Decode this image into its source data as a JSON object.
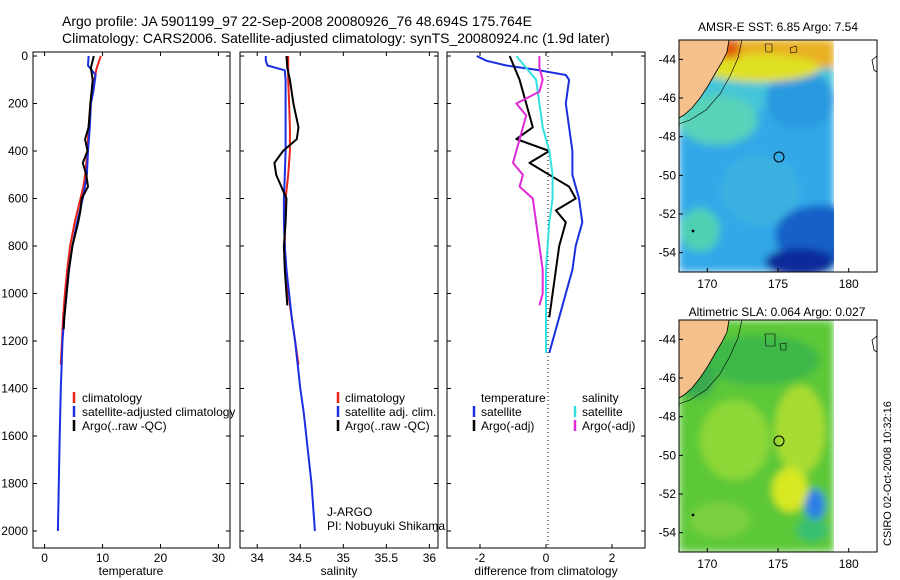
{
  "header": {
    "title_line1": "Argo profile: JA 5901199_97 22-Sep-2008 20080926_76 48.694S 175.764E",
    "title_line2": "Climatology: CARS2006. Satellite-adjusted climatology: synTS_20080924.nc (1.9d later)"
  },
  "colors": {
    "climatology": "#e8231b",
    "satellite": "#1a2ee0",
    "argo": "#000000",
    "cyan": "#33e0e0",
    "magenta": "#e028d8",
    "land": "#f6c08c"
  },
  "chart_data": [
    {
      "type": "line",
      "title": "",
      "xlabel": "temperature",
      "ylabel": "",
      "xlim": [
        -2,
        32
      ],
      "ylim": [
        2050,
        0
      ],
      "xticks": [
        "0",
        "10",
        "20",
        "30"
      ],
      "yticks": [
        "0",
        "200",
        "400",
        "600",
        "800",
        "1000",
        "1200",
        "1400",
        "1600",
        "1800",
        "2000"
      ],
      "legend": [
        "climatology",
        "satellite-adjusted climatology",
        "Argo(..raw -QC)"
      ],
      "series": [
        {
          "name": "climatology",
          "color": "climatology",
          "depth": [
            0,
            50,
            100,
            200,
            300,
            400,
            500,
            550,
            600,
            700,
            800,
            900,
            1000,
            1100,
            1200,
            1300
          ],
          "values": [
            9.7,
            9.0,
            8.6,
            7.9,
            7.6,
            7.4,
            7.0,
            6.7,
            6.2,
            5.2,
            4.4,
            3.9,
            3.5,
            3.2,
            3.0,
            2.8
          ]
        },
        {
          "name": "satellite-adjusted climatology",
          "color": "satellite",
          "depth": [
            0,
            40,
            80,
            150,
            200,
            300,
            400,
            500,
            600,
            700,
            800,
            900,
            1000,
            1100,
            1200,
            1400,
            1600,
            1800,
            2000
          ],
          "values": [
            7.6,
            7.5,
            8.8,
            8.4,
            8.0,
            7.8,
            7.5,
            7.3,
            6.6,
            5.6,
            4.8,
            4.2,
            3.8,
            3.4,
            3.1,
            2.8,
            2.6,
            2.45,
            2.3
          ]
        },
        {
          "name": "Argo(..raw -QC)",
          "color": "argo",
          "depth": [
            0,
            50,
            100,
            200,
            300,
            350,
            400,
            450,
            500,
            550,
            600,
            650,
            700,
            800,
            900,
            1000,
            1100,
            1150
          ],
          "values": [
            8.5,
            8.0,
            8.3,
            7.9,
            7.6,
            7.0,
            7.4,
            6.6,
            7.2,
            7.5,
            6.4,
            6.2,
            5.8,
            4.8,
            4.2,
            3.8,
            3.4,
            3.3
          ]
        }
      ]
    },
    {
      "type": "line",
      "title": "",
      "xlabel": "salinity",
      "ylabel": "",
      "xlim": [
        33.8,
        36.1
      ],
      "ylim": [
        2050,
        0
      ],
      "xticks": [
        "34",
        "34.5",
        "35",
        "35.5",
        "36"
      ],
      "legend": [
        "climatology",
        "satellite adj. clim.",
        "Argo(..raw -QC)"
      ],
      "annotation": [
        "J-ARGO",
        "PI: Nobuyuki Shikama"
      ],
      "series": [
        {
          "name": "climatology",
          "color": "climatology",
          "depth": [
            0,
            100,
            200,
            300,
            400,
            500,
            600,
            700,
            800,
            900,
            1000,
            1100,
            1200,
            1300
          ],
          "values": [
            34.36,
            34.36,
            34.37,
            34.38,
            34.38,
            34.36,
            34.33,
            34.32,
            34.32,
            34.33,
            34.36,
            34.4,
            34.44,
            34.48
          ]
        },
        {
          "name": "satellite adj. clim.",
          "color": "satellite",
          "depth": [
            0,
            20,
            40,
            60,
            100,
            200,
            400,
            500,
            600,
            700,
            800,
            900,
            1000,
            1100,
            1200,
            1300,
            1400,
            1500,
            1600,
            1700,
            1800,
            1900,
            2000
          ],
          "values": [
            34.1,
            34.1,
            34.12,
            34.32,
            34.33,
            34.33,
            34.33,
            34.32,
            34.31,
            34.31,
            34.32,
            34.34,
            34.37,
            34.4,
            34.44,
            34.47,
            34.5,
            34.54,
            34.57,
            34.6,
            34.63,
            34.65,
            34.67
          ]
        },
        {
          "name": "Argo(..raw -QC)",
          "color": "argo",
          "depth": [
            0,
            50,
            100,
            200,
            300,
            350,
            400,
            450,
            500,
            550,
            600,
            700,
            800,
            900,
            1000,
            1050
          ],
          "values": [
            34.34,
            34.35,
            34.38,
            34.42,
            34.48,
            34.46,
            34.3,
            34.2,
            34.22,
            34.28,
            34.34,
            34.33,
            34.31,
            34.32,
            34.34,
            34.35
          ]
        }
      ]
    },
    {
      "type": "line",
      "title": "",
      "xlabel": "difference from climatology",
      "ylabel": "",
      "xlim": [
        -3,
        3
      ],
      "ylim": [
        2050,
        0
      ],
      "xticks": [
        "-2",
        "0",
        "2"
      ],
      "legend_left": [
        "temperature",
        "satellite",
        "Argo(-adj)"
      ],
      "legend_right": [
        "salinity",
        "satellite",
        "Argo(-adj)"
      ],
      "series": [
        {
          "name": "temperature satellite",
          "color": "satellite",
          "depth": [
            0,
            20,
            40,
            60,
            80,
            100,
            200,
            300,
            400,
            500,
            600,
            700,
            800,
            900,
            1000,
            1100,
            1200,
            1250
          ],
          "values": [
            -2.1,
            -1.8,
            -1.2,
            -0.2,
            0.6,
            0.7,
            0.6,
            0.7,
            0.8,
            0.8,
            1.0,
            1.1,
            0.9,
            0.8,
            0.6,
            0.4,
            0.2,
            0.1
          ]
        },
        {
          "name": "temperature Argo(-adj)",
          "color": "argo",
          "depth": [
            0,
            100,
            200,
            300,
            350,
            400,
            450,
            500,
            550,
            600,
            650,
            700,
            800,
            900,
            1000,
            1100
          ],
          "values": [
            -1.1,
            -0.8,
            -0.6,
            -0.4,
            -0.9,
            0.1,
            -0.5,
            0.1,
            0.7,
            0.9,
            0.3,
            0.6,
            0.4,
            0.3,
            0.2,
            0.1
          ]
        },
        {
          "name": "salinity satellite",
          "color": "cyan",
          "depth": [
            0,
            50,
            100,
            200,
            300,
            400,
            500,
            600,
            700,
            800,
            900,
            1000,
            1100,
            1200,
            1250
          ],
          "values": [
            -0.9,
            -0.6,
            -0.3,
            -0.2,
            -0.1,
            0.1,
            0.2,
            0.2,
            0.1,
            0.05,
            0.0,
            0.0,
            0.0,
            0.0,
            0.0
          ]
        },
        {
          "name": "salinity Argo(-adj)",
          "color": "magenta",
          "depth": [
            0,
            50,
            100,
            150,
            200,
            250,
            300,
            350,
            400,
            450,
            500,
            550,
            600,
            700,
            800,
            900,
            1000,
            1050
          ],
          "values": [
            -0.2,
            -0.2,
            -0.1,
            -0.2,
            -0.9,
            -0.6,
            -0.7,
            -0.8,
            -0.9,
            -1.0,
            -0.7,
            -0.8,
            -0.4,
            -0.3,
            -0.2,
            -0.1,
            -0.1,
            -0.2
          ]
        }
      ]
    },
    {
      "type": "heatmap",
      "title": "AMSR-E SST: 6.85 Argo: 7.54",
      "xticks": [
        "170",
        "175",
        "180"
      ],
      "yticks": [
        "-44",
        "-46",
        "-48",
        "-50",
        "-52",
        "-54"
      ],
      "xlim": [
        168,
        182
      ],
      "ylim": [
        -55,
        -43
      ],
      "float_position": {
        "lon": 175.764,
        "lat": -48.694
      }
    },
    {
      "type": "heatmap",
      "title": "Altimetric SLA: 0.064 Argo: 0.027",
      "xticks": [
        "170",
        "175",
        "180"
      ],
      "yticks": [
        "-44",
        "-46",
        "-48",
        "-50",
        "-52",
        "-54"
      ],
      "xlim": [
        168,
        182
      ],
      "ylim": [
        -55,
        -43
      ],
      "float_position": {
        "lon": 175.764,
        "lat": -48.694
      }
    }
  ],
  "footer": {
    "side_stamp": "CSIRO 02-Oct-2008 10:32:16"
  }
}
